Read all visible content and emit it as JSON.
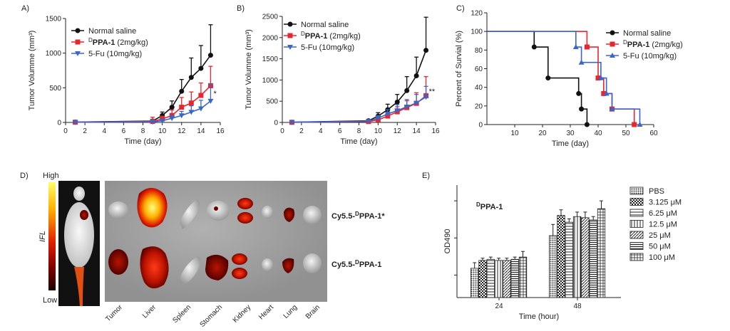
{
  "colors": {
    "black": "#111111",
    "red": "#e8262e",
    "blue": "#3a66c8",
    "grey": "#8a8a8a"
  },
  "chart_data": [
    {
      "id": "A",
      "panel_label": "A)",
      "type": "line",
      "xlabel": "Time (day)",
      "ylabel": "Tumor Volumme (mm³)",
      "xlim": [
        0,
        16
      ],
      "ylim": [
        0,
        1500
      ],
      "xticks": [
        "0",
        "2",
        "4",
        "6",
        "8",
        "10",
        "12",
        "14",
        "16"
      ],
      "yticks": [
        "0",
        "500",
        "1000",
        "1500"
      ],
      "x": [
        1,
        9,
        10,
        11,
        12,
        13,
        14,
        15
      ],
      "series": [
        {
          "name": "Normal saline",
          "color": "#111111",
          "marker": "circle",
          "values": [
            5,
            20,
            100,
            220,
            450,
            650,
            780,
            970
          ],
          "errors": [
            3,
            10,
            50,
            90,
            170,
            280,
            330,
            440
          ]
        },
        {
          "name_prefix": "D",
          "name_bold": "PPA-1",
          "name": " (2mg/kg)",
          "color": "#e8262e",
          "marker": "square",
          "values": [
            3,
            15,
            50,
            100,
            220,
            280,
            390,
            530
          ],
          "errors": [
            2,
            60,
            40,
            80,
            140,
            160,
            180,
            280
          ]
        },
        {
          "name": "5-Fu (10mg/kg)",
          "color": "#3a66c8",
          "marker": "triangle-down",
          "values": [
            3,
            8,
            25,
            60,
            100,
            150,
            200,
            310
          ],
          "errors": [
            2,
            5,
            20,
            40,
            60,
            90,
            120,
            240
          ]
        }
      ],
      "annotation": "*"
    },
    {
      "id": "B",
      "panel_label": "B)",
      "type": "line",
      "xlabel": "Time (day)",
      "ylabel": "Tumor Volumme (mm³)",
      "xlim": [
        0,
        16
      ],
      "ylim": [
        0,
        2500
      ],
      "xticks": [
        "0",
        "2",
        "4",
        "6",
        "8",
        "10",
        "12",
        "14",
        "16"
      ],
      "yticks": [
        "0",
        "500",
        "1000",
        "1500",
        "2000",
        "2500"
      ],
      "x": [
        1,
        9,
        10,
        11,
        12,
        13,
        14,
        15
      ],
      "series": [
        {
          "name": "Normal saline",
          "color": "#111111",
          "marker": "circle",
          "values": [
            5,
            40,
            150,
            300,
            480,
            750,
            1100,
            1700
          ],
          "errors": [
            3,
            20,
            80,
            130,
            180,
            330,
            440,
            780
          ]
        },
        {
          "name_prefix": "D",
          "name_bold": "PPA-1",
          "name": " (2mg/kg)",
          "color": "#e8262e",
          "marker": "square",
          "values": [
            3,
            20,
            60,
            150,
            250,
            350,
            450,
            630
          ],
          "errors": [
            2,
            15,
            40,
            80,
            120,
            160,
            250,
            450
          ]
        },
        {
          "name": "5-Fu (10mg/kg)",
          "color": "#3a66c8",
          "marker": "triangle-down",
          "values": [
            3,
            30,
            100,
            200,
            280,
            370,
            460,
            600
          ],
          "errors": [
            2,
            20,
            60,
            100,
            140,
            170,
            200,
            250
          ]
        }
      ],
      "annotation": "**"
    },
    {
      "id": "C",
      "panel_label": "C)",
      "type": "line",
      "step": true,
      "xlabel": "Time (day)",
      "ylabel": "Percent of Survial (%)",
      "xlim": [
        0,
        60
      ],
      "ylim": [
        0,
        120
      ],
      "xticks": [
        "10",
        "20",
        "30",
        "40",
        "50",
        "60"
      ],
      "yticks": [
        "0",
        "20",
        "40",
        "60",
        "80",
        "100",
        "120"
      ],
      "series": [
        {
          "name": "Normal saline",
          "color": "#111111",
          "marker": "circle",
          "points": [
            [
              0,
              100
            ],
            [
              17,
              100
            ],
            [
              17,
              83.3
            ],
            [
              22,
              83.3
            ],
            [
              22,
              50
            ],
            [
              33,
              50
            ],
            [
              33,
              33.3
            ],
            [
              34,
              33.3
            ],
            [
              34,
              16.7
            ],
            [
              36,
              16.7
            ],
            [
              36,
              0
            ]
          ],
          "markers": [
            [
              17,
              83.3
            ],
            [
              22,
              50
            ],
            [
              33,
              33.3
            ],
            [
              34,
              16.7
            ],
            [
              36,
              0
            ]
          ]
        },
        {
          "name_prefix": "D",
          "name_bold": "PPA-1",
          "name": " (2mg/kg)",
          "color": "#e8262e",
          "marker": "square",
          "points": [
            [
              0,
              100
            ],
            [
              36,
              100
            ],
            [
              36,
              83.3
            ],
            [
              40,
              83.3
            ],
            [
              40,
              50
            ],
            [
              42,
              50
            ],
            [
              42,
              33.3
            ],
            [
              45,
              33.3
            ],
            [
              45,
              16.7
            ],
            [
              53,
              16.7
            ],
            [
              53,
              0
            ]
          ],
          "markers": [
            [
              36,
              83.3
            ],
            [
              40,
              50
            ],
            [
              42,
              33.3
            ],
            [
              45,
              16.7
            ],
            [
              53,
              0
            ]
          ]
        },
        {
          "name": "5-Fu (10mg/kg)",
          "color": "#3a66c8",
          "marker": "triangle-up",
          "points": [
            [
              0,
              100
            ],
            [
              32,
              100
            ],
            [
              32,
              83.3
            ],
            [
              34,
              83.3
            ],
            [
              34,
              66.7
            ],
            [
              41,
              66.7
            ],
            [
              41,
              50
            ],
            [
              43,
              50
            ],
            [
              43,
              33.3
            ],
            [
              45,
              33.3
            ],
            [
              45,
              16.7
            ],
            [
              55,
              16.7
            ],
            [
              55,
              0
            ]
          ],
          "markers": [
            [
              32,
              83.3
            ],
            [
              34,
              66.7
            ],
            [
              41,
              50
            ],
            [
              43,
              33.3
            ],
            [
              45,
              16.7
            ],
            [
              55,
              0
            ]
          ]
        }
      ]
    },
    {
      "id": "E",
      "panel_label": "E)",
      "type": "bar",
      "title_prefix": "D",
      "title": "PPA-1",
      "xlabel": "Time (hour)",
      "ylabel": "OD490",
      "ylim": [
        0,
        1
      ],
      "categories": [
        "24",
        "48"
      ],
      "series": [
        {
          "name": "PBS",
          "pattern": "dots",
          "values": [
            0.26,
            0.55
          ],
          "errors": [
            0.05,
            0.1
          ]
        },
        {
          "name": "3.125 μM",
          "pattern": "checks",
          "values": [
            0.33,
            0.73
          ],
          "errors": [
            0.02,
            0.05
          ]
        },
        {
          "name": "6.25 μM",
          "pattern": "hlines",
          "values": [
            0.34,
            0.67
          ],
          "errors": [
            0.02,
            0.03
          ]
        },
        {
          "name": "12.5 μM",
          "pattern": "vlines",
          "values": [
            0.33,
            0.72
          ],
          "errors": [
            0.02,
            0.04
          ]
        },
        {
          "name": "25 μM",
          "pattern": "diag",
          "values": [
            0.33,
            0.71
          ],
          "errors": [
            0.02,
            0.05
          ]
        },
        {
          "name": "50 μM",
          "pattern": "dense-h",
          "values": [
            0.34,
            0.69
          ],
          "errors": [
            0.02,
            0.03
          ]
        },
        {
          "name": "100 μM",
          "pattern": "grid",
          "values": [
            0.36,
            0.79
          ],
          "errors": [
            0.05,
            0.07
          ]
        }
      ]
    }
  ],
  "panel_d": {
    "panel_label": "D)",
    "scale_high": "High",
    "scale_low": "Low",
    "scale_label": "IFL",
    "row1_label_prefix": "Cy5.5-",
    "row1_label_sup": "D",
    "row1_label_main": "PPA-1*",
    "row2_label_prefix": "Cy5.5-",
    "row2_label_sup": "D",
    "row2_label_main": "PPA-1",
    "organs": [
      "Tumor",
      "Liver",
      "Spleen",
      "Stomach",
      "Kidney",
      "Heart",
      "Lung",
      "Brain"
    ]
  }
}
